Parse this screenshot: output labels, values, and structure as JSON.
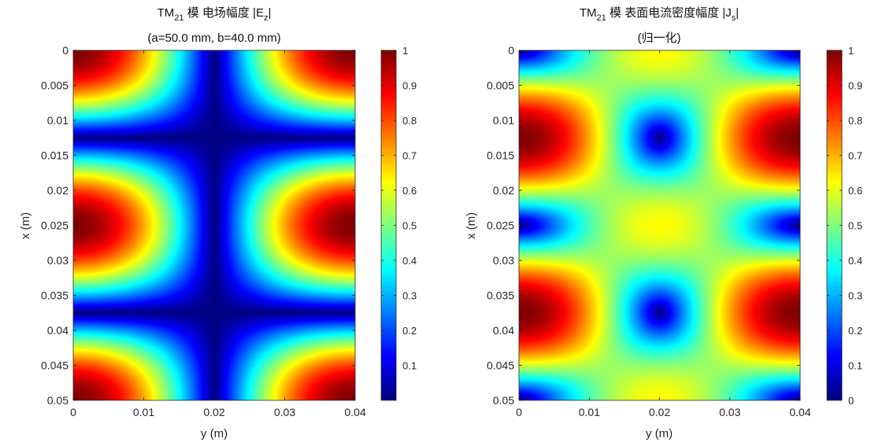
{
  "chart_data": [
    {
      "type": "heatmap",
      "title": {
        "prefix": "TM",
        "mode_sub": "21",
        "suffix": " 模 电场幅度 |E",
        "field_sub": "z",
        "end": "|"
      },
      "subtitle": "(a=50.0 mm, b=40.0 mm)",
      "xlabel": "y (m)",
      "ylabel": "x (m)",
      "x_ticks": [
        "0",
        "0.01",
        "0.02",
        "0.03",
        "0.04"
      ],
      "y_ticks": [
        "0",
        "0.005",
        "0.01",
        "0.015",
        "0.02",
        "0.025",
        "0.03",
        "0.035",
        "0.04",
        "0.045",
        "0.05"
      ],
      "x_range": [
        0,
        0.04
      ],
      "y_range": [
        0,
        0.05
      ],
      "y_direction": "reversed (0 at top)",
      "colormap": "jet",
      "clim": [
        0,
        1
      ],
      "colorbar_ticks": [
        "0.1",
        "0.2",
        "0.3",
        "0.4",
        "0.5",
        "0.6",
        "0.7",
        "0.8",
        "0.9",
        "1"
      ],
      "field": "|cos(pi*y/b) * cos(2*pi*x/a)|",
      "a": 0.05,
      "b": 0.04
    },
    {
      "type": "heatmap",
      "title": {
        "prefix": "TM",
        "mode_sub": "21",
        "suffix": " 模 表面电流密度幅度 |J",
        "field_sub": "s",
        "end": "|"
      },
      "subtitle": "(归一化)",
      "xlabel": "y (m)",
      "ylabel": "x (m)",
      "x_ticks": [
        "0",
        "0.01",
        "0.02",
        "0.03",
        "0.04"
      ],
      "y_ticks": [
        "0",
        "0.005",
        "0.01",
        "0.015",
        "0.02",
        "0.025",
        "0.03",
        "0.035",
        "0.04",
        "0.045",
        "0.05"
      ],
      "x_range": [
        0,
        0.04
      ],
      "y_range": [
        0,
        0.05
      ],
      "y_direction": "reversed (0 at top)",
      "colormap": "jet",
      "clim": [
        0,
        1
      ],
      "colorbar_ticks": [
        "0",
        "0.1",
        "0.2",
        "0.3",
        "0.4",
        "0.5",
        "0.6",
        "0.7",
        "0.8",
        "0.9",
        "1"
      ],
      "field": "normalized sqrt((2*pi/a*sin(2*pi*x/a)*cos(pi*y/b))^2 + (pi/b*cos(2*pi*x/a)*sin(pi*y/b))^2)",
      "a": 0.05,
      "b": 0.04
    }
  ]
}
